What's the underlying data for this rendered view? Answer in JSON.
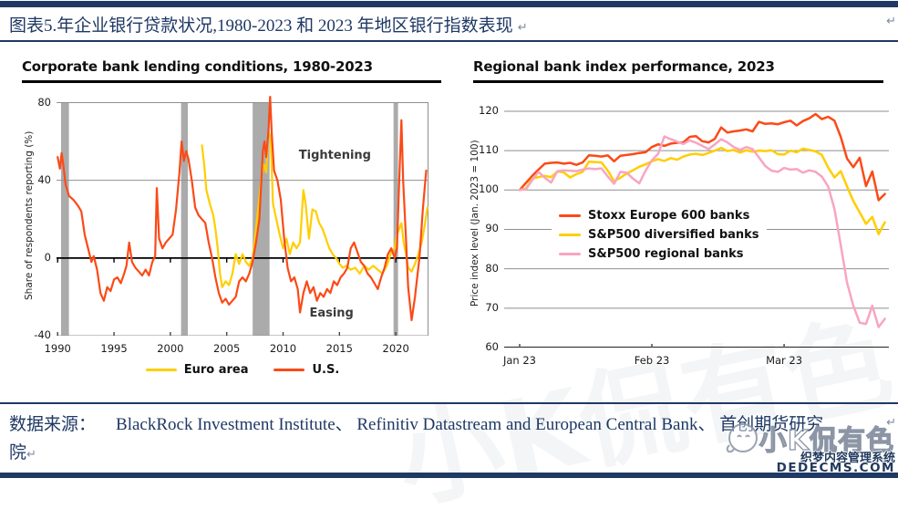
{
  "header": {
    "title": "图表5.年企业银行贷款状况,1980-2023 和 2023 年地区银行指数表现",
    "return_mark": "↵"
  },
  "footer": {
    "label": "数据来源：",
    "line1": "BlackRock Investment Institute、 Refinitiv Datastream and European Central Bank、 首创期货研究",
    "line2": "院",
    "return_mark": "↵"
  },
  "watermark": {
    "big_text": "小K侃有色",
    "cms_name": "织梦内容管理系统",
    "cms_domain": "DEDECMS.COM"
  },
  "colors": {
    "rule_navy": "#1f3864",
    "us_orange": "#fb4a17",
    "euro_yellow": "#ffce00",
    "regional_pink": "#f8a5c1",
    "recession_band": "#ababab",
    "gridline": "#8f8f8f"
  },
  "chart_data": [
    {
      "type": "line",
      "title": "Corporate bank lending conditions, 1980-2023",
      "ylabel": "Share of respondents reporting (%)",
      "xlim": [
        1989.9,
        2022.9
      ],
      "ylim": [
        -40,
        84
      ],
      "grid_top": 80,
      "yticks": [
        80,
        40,
        0,
        -40
      ],
      "xticks": [
        1990,
        1995,
        2000,
        2005,
        2010,
        2015,
        2020
      ],
      "zero_axis": 0,
      "stroke": 2.2,
      "band_color": "#ababab",
      "bands": [
        [
          1990.3,
          1991.0
        ],
        [
          2000.95,
          2001.55
        ],
        [
          2007.3,
          2008.8
        ],
        [
          2019.8,
          2020.2
        ]
      ],
      "frame": {
        "right": true
      },
      "annotations": [
        {
          "text": "Tightening",
          "x": 2014.6,
          "y": 52
        },
        {
          "text": "Easing",
          "x": 2014.3,
          "y": -29
        }
      ],
      "legend": [
        {
          "label": "Euro area",
          "color": "#ffce00"
        },
        {
          "label": "U.S.",
          "color": "#fb4a17"
        }
      ],
      "series": [
        {
          "name": "Euro area",
          "color": "#ffce00",
          "x": [
            2002.8,
            2003.0,
            2003.2,
            2003.5,
            2003.8,
            2004.0,
            2004.2,
            2004.4,
            2004.6,
            2004.9,
            2005.2,
            2005.5,
            2005.8,
            2006.1,
            2006.4,
            2006.7,
            2007.0,
            2007.3,
            2007.6,
            2007.9,
            2008.1,
            2008.3,
            2008.5,
            2008.7,
            2008.9,
            2009.1,
            2009.4,
            2009.7,
            2010.0,
            2010.3,
            2010.6,
            2010.9,
            2011.2,
            2011.5,
            2011.8,
            2012.0,
            2012.3,
            2012.6,
            2012.9,
            2013.2,
            2013.5,
            2013.8,
            2014.1,
            2014.4,
            2014.7,
            2015.0,
            2015.3,
            2015.6,
            2016.0,
            2016.4,
            2016.8,
            2017.2,
            2017.6,
            2018.0,
            2018.4,
            2018.8,
            2019.2,
            2019.6,
            2019.9,
            2020.1,
            2020.3,
            2020.5,
            2020.7,
            2020.9,
            2021.1,
            2021.4,
            2021.7,
            2022.0,
            2022.3,
            2022.6,
            2022.8
          ],
          "y": [
            58,
            48,
            35,
            28,
            22,
            15,
            5,
            -8,
            -15,
            -12,
            -14,
            -8,
            2,
            -3,
            2,
            -2,
            -4,
            0,
            15,
            31,
            43,
            48,
            44,
            65,
            62,
            28,
            20,
            12,
            5,
            10,
            2,
            8,
            5,
            8,
            35,
            28,
            10,
            25,
            24,
            18,
            15,
            10,
            5,
            2,
            0,
            -3,
            -5,
            -4,
            -6,
            -5,
            -8,
            -4,
            -6,
            -4,
            -6,
            -8,
            -4,
            3,
            5,
            12,
            15,
            18,
            8,
            2,
            -5,
            -7,
            -3,
            2,
            8,
            18,
            26
          ]
        },
        {
          "name": "U.S.",
          "color": "#fb4a17",
          "x": [
            1990.0,
            1990.2,
            1990.35,
            1990.5,
            1990.7,
            1991.0,
            1991.4,
            1991.8,
            1992.1,
            1992.4,
            1992.7,
            1993.0,
            1993.2,
            1993.5,
            1993.8,
            1994.1,
            1994.4,
            1994.7,
            1995.0,
            1995.3,
            1995.6,
            1995.9,
            1996.1,
            1996.35,
            1996.6,
            1996.9,
            1997.2,
            1997.5,
            1997.8,
            1998.1,
            1998.4,
            1998.65,
            1998.8,
            1999.0,
            1999.3,
            1999.6,
            1999.9,
            2000.2,
            2000.5,
            2000.8,
            2001.0,
            2001.2,
            2001.4,
            2001.6,
            2001.9,
            2002.2,
            2002.5,
            2002.8,
            2003.1,
            2003.4,
            2003.7,
            2004.0,
            2004.3,
            2004.6,
            2004.9,
            2005.2,
            2005.5,
            2005.8,
            2006.1,
            2006.4,
            2006.7,
            2007.0,
            2007.3,
            2007.6,
            2007.9,
            2008.2,
            2008.35,
            2008.5,
            2008.7,
            2008.85,
            2009.0,
            2009.2,
            2009.5,
            2009.8,
            2010.1,
            2010.4,
            2010.7,
            2011.0,
            2011.3,
            2011.5,
            2011.8,
            2012.1,
            2012.4,
            2012.7,
            2013.0,
            2013.3,
            2013.6,
            2013.9,
            2014.2,
            2014.5,
            2014.8,
            2015.1,
            2015.4,
            2015.7,
            2016.0,
            2016.3,
            2016.6,
            2016.9,
            2017.2,
            2017.5,
            2017.8,
            2018.1,
            2018.4,
            2018.7,
            2019.0,
            2019.3,
            2019.6,
            2019.9,
            2020.1,
            2020.3,
            2020.5,
            2020.65,
            2020.9,
            2021.1,
            2021.4,
            2021.7,
            2021.9,
            2022.1,
            2022.4,
            2022.7
          ],
          "y": [
            52,
            46,
            54,
            48,
            38,
            32,
            30,
            27,
            24,
            12,
            5,
            -2,
            1,
            -6,
            -18,
            -22,
            -15,
            -17,
            -11,
            -10,
            -13,
            -8,
            -4,
            8,
            -2,
            -5,
            -7,
            -9,
            -6,
            -9,
            -2,
            1,
            36,
            10,
            5,
            8,
            10,
            12,
            25,
            44,
            60,
            50,
            55,
            51,
            40,
            26,
            22,
            20,
            18,
            8,
            0,
            -10,
            -18,
            -23,
            -21,
            -24,
            -22,
            -20,
            -12,
            -10,
            -12,
            -8,
            -2,
            8,
            20,
            55,
            60,
            52,
            65,
            83,
            64,
            45,
            40,
            30,
            10,
            -5,
            -12,
            -10,
            -16,
            -28,
            -18,
            -12,
            -18,
            -15,
            -22,
            -18,
            -20,
            -16,
            -18,
            -12,
            -14,
            -10,
            -8,
            -5,
            5,
            8,
            3,
            -2,
            -4,
            -8,
            -10,
            -13,
            -16,
            -10,
            -5,
            2,
            5,
            0,
            5,
            40,
            71,
            40,
            10,
            -15,
            -32,
            -20,
            -10,
            0,
            25,
            45
          ]
        }
      ]
    },
    {
      "type": "line",
      "title": "Regional bank index performance, 2023",
      "ylabel": "Price index level (Jan. 2023 = 100)",
      "xlim": [
        -2.46,
        58.64
      ],
      "ylim": [
        60,
        123
      ],
      "grid_top": 120,
      "yticks": [
        120,
        110,
        100,
        90,
        80,
        70,
        60
      ],
      "xticks": [
        {
          "x": 0,
          "label": "Jan 23"
        },
        {
          "x": 21,
          "label": "Feb 23"
        },
        {
          "x": 42,
          "label": "Mar 23"
        }
      ],
      "bottom_axis": 60,
      "stroke": 2.5,
      "legend": [
        {
          "label": "Stoxx Europe 600 banks",
          "color": "#fb4a17"
        },
        {
          "label": "S&P500 diversified banks",
          "color": "#ffce00"
        },
        {
          "label": "S&P500 regional banks",
          "color": "#f8a5c1"
        }
      ],
      "series": [
        {
          "name": "Stoxx Europe 600 banks",
          "color": "#fb4a17",
          "y": [
            100,
            101.8,
            103.6,
            105.2,
            106.7,
            106.9,
            107.0,
            106.7,
            106.9,
            106.4,
            107.0,
            108.8,
            108.7,
            108.5,
            108.8,
            107.3,
            108.7,
            108.9,
            109.1,
            109.4,
            109.6,
            110.9,
            111.6,
            111.2,
            111.8,
            112.0,
            112.1,
            113.5,
            113.7,
            112.4,
            112.1,
            113.0,
            115.9,
            114.6,
            114.9,
            115.1,
            115.4,
            114.9,
            117.3,
            116.8,
            116.9,
            116.7,
            117.2,
            117.6,
            116.4,
            117.5,
            118.2,
            119.3,
            118.0,
            118.6,
            117.6,
            113.5,
            108.0,
            105.8,
            108.2,
            101.0,
            104.7,
            97.4,
            99.0
          ]
        },
        {
          "name": "S&P500 diversified banks",
          "color": "#ffce00",
          "y": [
            100,
            100.4,
            102.9,
            103.3,
            103.6,
            103.3,
            104.7,
            104.5,
            103.2,
            104.0,
            104.6,
            107.2,
            107.1,
            107.0,
            104.9,
            102.3,
            103.1,
            104.2,
            105.0,
            105.9,
            106.5,
            107.3,
            107.8,
            107.4,
            108.1,
            107.7,
            108.5,
            109.0,
            109.2,
            108.9,
            109.4,
            110.0,
            110.7,
            109.9,
            110.2,
            109.5,
            110.1,
            109.7,
            110.0,
            109.9,
            110.1,
            109.1,
            109.0,
            110.0,
            109.6,
            110.5,
            110.2,
            109.8,
            108.9,
            105.7,
            103.2,
            104.8,
            100.9,
            97.2,
            94.3,
            91.4,
            93.2,
            88.8,
            91.8
          ]
        },
        {
          "name": "S&P500 regional banks",
          "color": "#f8a5c1",
          "y": [
            100,
            100.2,
            102.5,
            104.6,
            103.1,
            101.9,
            104.8,
            105.0,
            104.9,
            104.8,
            105.2,
            105.5,
            105.3,
            105.5,
            103.4,
            101.6,
            104.6,
            104.4,
            102.9,
            101.7,
            104.9,
            107.5,
            109.2,
            113.6,
            112.9,
            112.3,
            111.7,
            112.6,
            112.0,
            111.2,
            110.4,
            111.6,
            112.9,
            112.1,
            110.9,
            110.2,
            110.9,
            110.4,
            108.3,
            106.1,
            104.9,
            104.6,
            105.6,
            105.2,
            105.3,
            104.4,
            105.0,
            104.6,
            103.4,
            100.9,
            95.2,
            86.0,
            76.5,
            70.6,
            66.3,
            66.0,
            70.6,
            65.2,
            67.3
          ]
        }
      ]
    }
  ]
}
